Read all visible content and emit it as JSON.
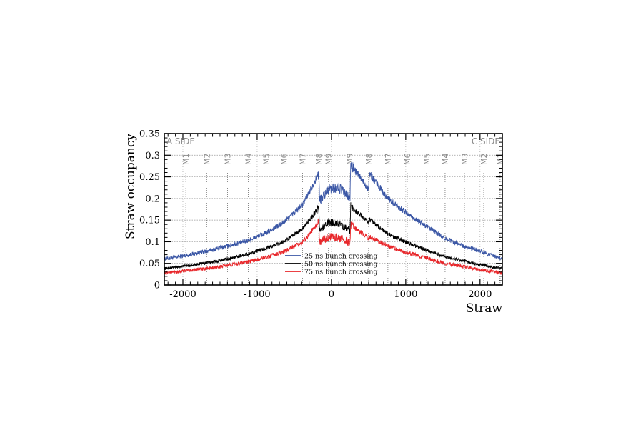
{
  "chart_data": {
    "type": "line",
    "title": "",
    "xlabel": "Straw",
    "ylabel": "Straw occupancy",
    "xlim": [
      -2250,
      2300
    ],
    "ylim": [
      0,
      0.35
    ],
    "x_ticks": [
      -2000,
      -1000,
      0,
      1000,
      2000
    ],
    "x_tick_labels": [
      "-2000",
      "-1000",
      "0",
      "1000",
      "2000"
    ],
    "y_ticks": [
      0,
      0.05,
      0.1,
      0.15,
      0.2,
      0.25,
      0.3,
      0.35
    ],
    "y_tick_labels": [
      "0",
      "0.05",
      "0.1",
      "0.15",
      "0.2",
      "0.25",
      "0.3",
      "0.35"
    ],
    "grid": true,
    "legend": "bottom-center",
    "side_labels": {
      "left": "A SIDE",
      "right": "C SIDE"
    },
    "modules": [
      {
        "label": "M1",
        "x": -1960
      },
      {
        "label": "M2",
        "x": -1680
      },
      {
        "label": "M3",
        "x": -1400
      },
      {
        "label": "M4",
        "x": -1120
      },
      {
        "label": "M5",
        "x": -880
      },
      {
        "label": "M6",
        "x": -640
      },
      {
        "label": "M7",
        "x": -390
      },
      {
        "label": "M8",
        "x": -170
      },
      {
        "label": "M9",
        "x": -40
      },
      {
        "label": "M9",
        "x": 240
      },
      {
        "label": "M8",
        "x": 500
      },
      {
        "label": "M7",
        "x": 760
      },
      {
        "label": "M6",
        "x": 1020
      },
      {
        "label": "M5",
        "x": 1280
      },
      {
        "label": "M4",
        "x": 1530
      },
      {
        "label": "M3",
        "x": 1790
      },
      {
        "label": "M2",
        "x": 2050
      },
      {
        "label": "M1",
        "x": 2270
      }
    ],
    "series": [
      {
        "name": "25 ns bunch crossing",
        "color": "#3a56a5",
        "points": [
          [
            -2250,
            0.06
          ],
          [
            -1960,
            0.068
          ],
          [
            -1680,
            0.078
          ],
          [
            -1400,
            0.09
          ],
          [
            -1120,
            0.103
          ],
          [
            -880,
            0.12
          ],
          [
            -640,
            0.145
          ],
          [
            -390,
            0.185
          ],
          [
            -170,
            0.258
          ],
          [
            -160,
            0.195
          ],
          [
            -40,
            0.222
          ],
          [
            100,
            0.225
          ],
          [
            250,
            0.2
          ],
          [
            260,
            0.278
          ],
          [
            500,
            0.222
          ],
          [
            510,
            0.258
          ],
          [
            760,
            0.2
          ],
          [
            1020,
            0.165
          ],
          [
            1280,
            0.135
          ],
          [
            1530,
            0.108
          ],
          [
            1790,
            0.09
          ],
          [
            2050,
            0.075
          ],
          [
            2300,
            0.06
          ]
        ]
      },
      {
        "name": "50 ns bunch crossing",
        "color": "#000000",
        "points": [
          [
            -2250,
            0.038
          ],
          [
            -1960,
            0.044
          ],
          [
            -1680,
            0.051
          ],
          [
            -1400,
            0.06
          ],
          [
            -1120,
            0.072
          ],
          [
            -880,
            0.085
          ],
          [
            -640,
            0.1
          ],
          [
            -390,
            0.13
          ],
          [
            -170,
            0.178
          ],
          [
            -160,
            0.125
          ],
          [
            -40,
            0.145
          ],
          [
            100,
            0.142
          ],
          [
            250,
            0.125
          ],
          [
            260,
            0.182
          ],
          [
            500,
            0.145
          ],
          [
            510,
            0.152
          ],
          [
            760,
            0.118
          ],
          [
            1020,
            0.098
          ],
          [
            1280,
            0.08
          ],
          [
            1530,
            0.065
          ],
          [
            1790,
            0.055
          ],
          [
            2050,
            0.045
          ],
          [
            2300,
            0.038
          ]
        ]
      },
      {
        "name": "75 ns bunch crossing",
        "color": "#e8262a",
        "points": [
          [
            -2250,
            0.028
          ],
          [
            -1960,
            0.033
          ],
          [
            -1680,
            0.038
          ],
          [
            -1400,
            0.045
          ],
          [
            -1120,
            0.054
          ],
          [
            -880,
            0.064
          ],
          [
            -640,
            0.077
          ],
          [
            -390,
            0.098
          ],
          [
            -170,
            0.145
          ],
          [
            -160,
            0.1
          ],
          [
            -40,
            0.112
          ],
          [
            100,
            0.11
          ],
          [
            250,
            0.098
          ],
          [
            260,
            0.138
          ],
          [
            500,
            0.108
          ],
          [
            510,
            0.112
          ],
          [
            760,
            0.09
          ],
          [
            1020,
            0.075
          ],
          [
            1280,
            0.062
          ],
          [
            1530,
            0.05
          ],
          [
            1790,
            0.042
          ],
          [
            2050,
            0.034
          ],
          [
            2300,
            0.028
          ]
        ]
      }
    ]
  }
}
